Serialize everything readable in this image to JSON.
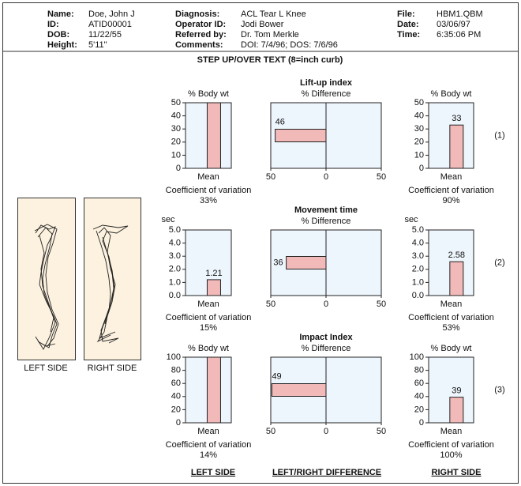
{
  "header": {
    "columns": [
      [
        {
          "label": "Name:",
          "value": "Doe, John J"
        },
        {
          "label": "ID:",
          "value": "ATID00001"
        },
        {
          "label": "DOB:",
          "value": "11/22/55"
        },
        {
          "label": "Height:",
          "value": "5'11\""
        }
      ],
      [
        {
          "label": "Diagnosis:",
          "value": "ACL Tear L Knee"
        },
        {
          "label": "Operator ID:",
          "value": "Jodi Bower"
        },
        {
          "label": "Referred by:",
          "value": "Dr. Tom Merkle"
        },
        {
          "label": "Comments:",
          "value": "DOI: 7/4/96;  DOS: 7/6/96"
        }
      ],
      [
        {
          "label": "File:",
          "value": "HBM1.QBM"
        },
        {
          "label": "Date:",
          "value": "03/06/97"
        },
        {
          "label": "Time:",
          "value": "6:35:06 PM"
        }
      ]
    ]
  },
  "title": "STEP UP/OVER TEXT (8=inch curb)",
  "row_labels": [
    "(1)",
    "(2)",
    "(3)"
  ],
  "figure_captions": [
    "LEFT SIDE",
    "RIGHT SIDE"
  ],
  "footer": [
    "LEFT SIDE",
    "LEFT/RIGHT DIFFERENCE",
    "RIGHT SIDE"
  ],
  "chart_data": [
    {
      "type": "bar",
      "ylabel": "% Body wt",
      "ylabel_position": "top",
      "categories": [
        "Mean"
      ],
      "values": [
        50
      ],
      "color": "#f2b9b9",
      "ylim": [
        0,
        50
      ],
      "yticks": [
        0,
        10,
        20,
        30,
        40,
        50
      ],
      "caption": "Coefficient of variation",
      "caption_value": "33%"
    },
    {
      "type": "hbar",
      "title": "Lift-up index",
      "subtitle": "% Difference",
      "values": [
        -46
      ],
      "value_labels": [
        "46"
      ],
      "value_label_position": "above",
      "color": "#f2b9b9",
      "xlim": [
        -50,
        50
      ],
      "xticks": [
        {
          "value": -50,
          "label": "50"
        },
        0,
        50
      ]
    },
    {
      "type": "bar",
      "ylabel": "% Body wt",
      "ylabel_position": "top",
      "categories": [
        "Mean"
      ],
      "values": [
        33
      ],
      "value_labels": [
        "33"
      ],
      "color": "#f2b9b9",
      "ylim": [
        0,
        50
      ],
      "yticks": [
        0,
        10,
        20,
        30,
        40,
        50
      ],
      "caption": "Coefficient of variation",
      "caption_value": "90%"
    },
    {
      "type": "bar",
      "ylabel": "sec",
      "ylabel_position": "top-left",
      "categories": [
        "Mean"
      ],
      "values": [
        1.21
      ],
      "value_labels": [
        "1.21"
      ],
      "color": "#f2b9b9",
      "ylim": [
        0,
        5
      ],
      "yticks": [
        {
          "value": 0,
          "label": "0.0"
        },
        {
          "value": 1,
          "label": "1.0"
        },
        {
          "value": 2,
          "label": "2.0"
        },
        {
          "value": 3,
          "label": "3.0"
        },
        {
          "value": 4,
          "label": "4.0"
        },
        {
          "value": 5,
          "label": "5.0"
        }
      ],
      "caption": "Coefficient of variation",
      "caption_value": "15%"
    },
    {
      "type": "hbar",
      "title": "Movement time",
      "subtitle": "% Difference",
      "values": [
        -36
      ],
      "value_labels": [
        "36"
      ],
      "value_label_position": "left",
      "color": "#f2b9b9",
      "xlim": [
        -50,
        50
      ],
      "xticks": [
        {
          "value": -50,
          "label": "50"
        },
        0,
        50
      ]
    },
    {
      "type": "bar",
      "ylabel": "sec",
      "ylabel_position": "top-left",
      "categories": [
        "Mean"
      ],
      "values": [
        2.58
      ],
      "value_labels": [
        "2.58"
      ],
      "color": "#f2b9b9",
      "ylim": [
        0,
        5
      ],
      "yticks": [
        {
          "value": 0,
          "label": "0.0"
        },
        {
          "value": 1,
          "label": "1.0"
        },
        {
          "value": 2,
          "label": "2.0"
        },
        {
          "value": 3,
          "label": "3.0"
        },
        {
          "value": 4,
          "label": "4.0"
        },
        {
          "value": 5,
          "label": "5.0"
        }
      ],
      "caption": "Coefficient of variation",
      "caption_value": "53%"
    },
    {
      "type": "bar",
      "ylabel": "% Body wt",
      "ylabel_position": "top",
      "categories": [
        "Mean"
      ],
      "values": [
        100
      ],
      "color": "#f2b9b9",
      "ylim": [
        0,
        100
      ],
      "yticks": [
        0,
        20,
        40,
        60,
        80,
        100
      ],
      "caption": "Coefficient of variation",
      "caption_value": "14%"
    },
    {
      "type": "hbar",
      "title": "Impact Index",
      "subtitle": "% Difference",
      "values": [
        -49
      ],
      "value_labels": [
        "49"
      ],
      "value_label_position": "above",
      "color": "#f2b9b9",
      "xlim": [
        -50,
        50
      ],
      "xticks": [
        {
          "value": -50,
          "label": "50"
        },
        0,
        50
      ]
    },
    {
      "type": "bar",
      "ylabel": "% Body wt",
      "ylabel_position": "top",
      "categories": [
        "Mean"
      ],
      "values": [
        39
      ],
      "value_labels": [
        "39"
      ],
      "color": "#f2b9b9",
      "ylim": [
        0,
        100
      ],
      "yticks": [
        0,
        20,
        40,
        60,
        80,
        100
      ],
      "caption": "Coefficient of variation",
      "caption_value": "100%"
    }
  ]
}
